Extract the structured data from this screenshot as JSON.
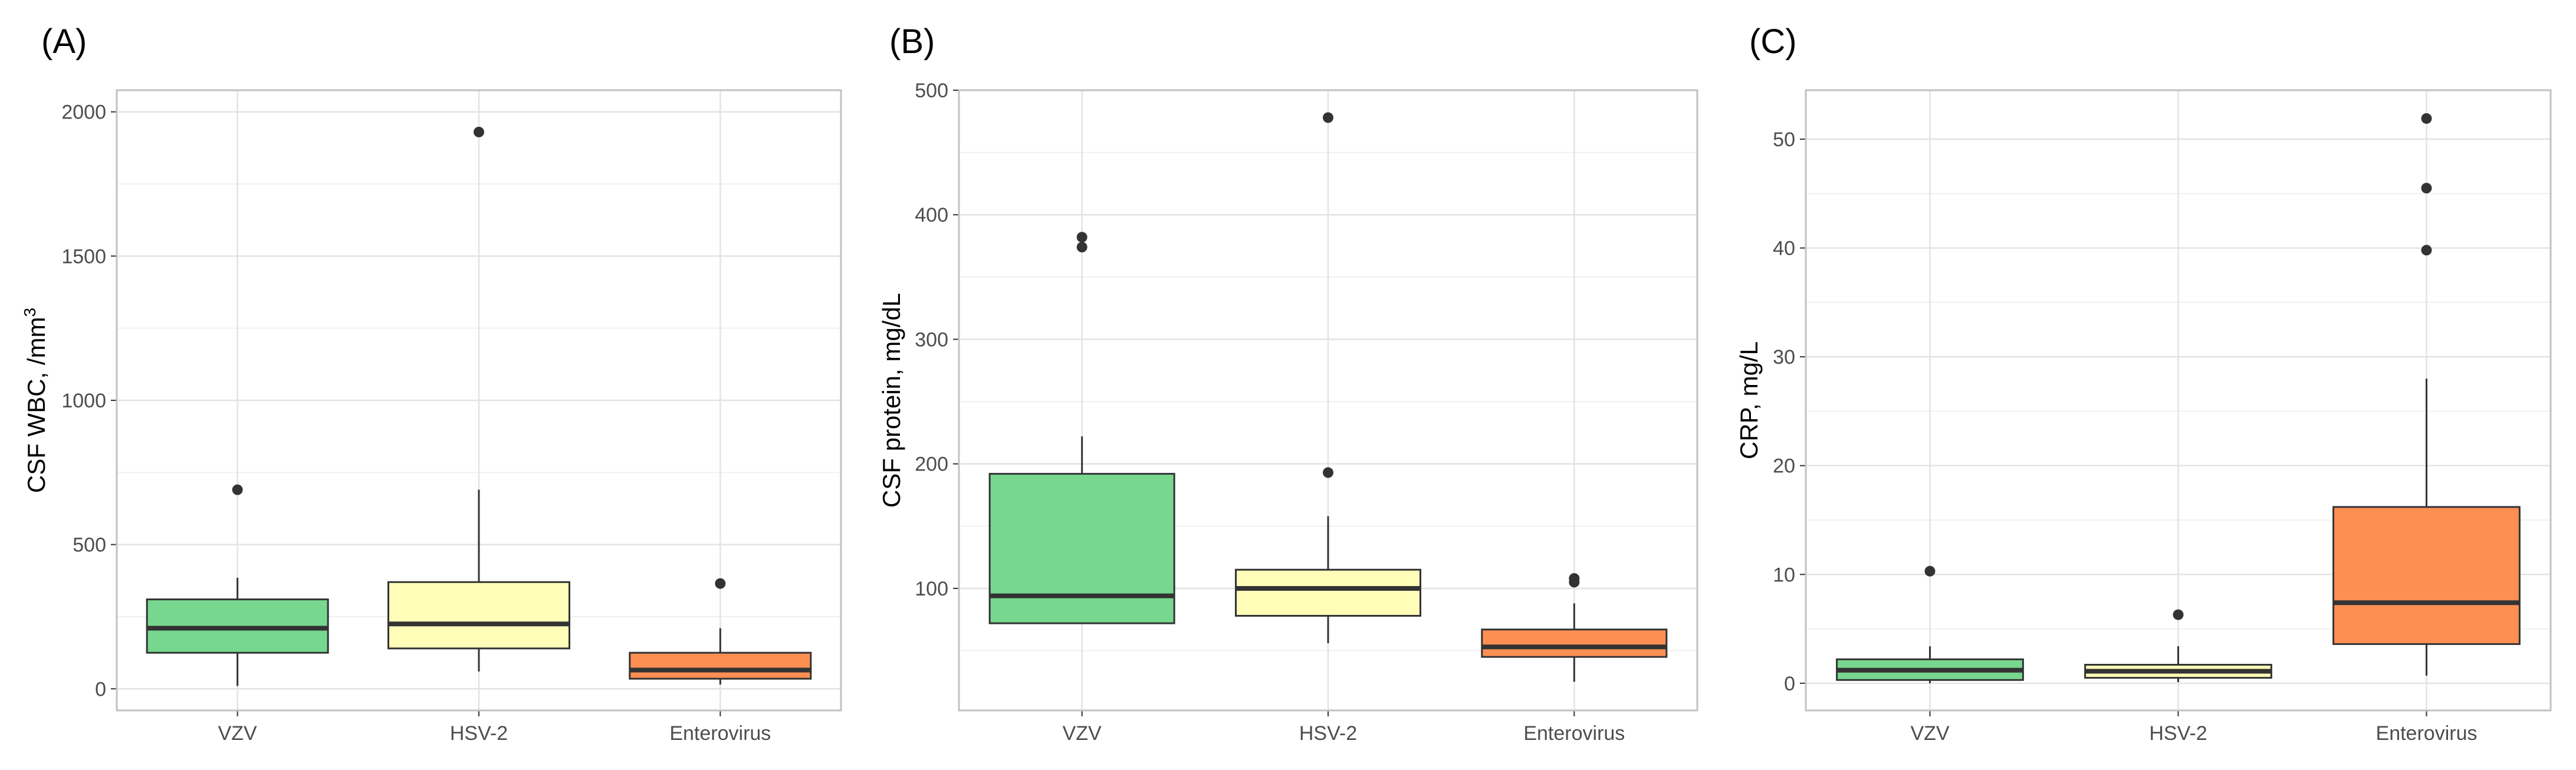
{
  "colors": {
    "VZV": "#77D78F",
    "HSV-2": "#FFFDB7",
    "Enterovirus": "#FE8F53",
    "outline": "#333333",
    "grid_major": "#e3e3e3",
    "grid_minor": "#f0f0f0",
    "panel_border": "#c2c2c2"
  },
  "chart_data": [
    {
      "type": "box",
      "panel_label": "(A)",
      "ylabel": "CSF WBC, /mm3",
      "ylabel_main": "CSF WBC, /mm",
      "ylabel_sup": "3",
      "categories": [
        "VZV",
        "HSV-2",
        "Enterovirus"
      ],
      "ylim": [
        -75,
        2075
      ],
      "yticks": [
        0,
        500,
        1000,
        1500,
        2000
      ],
      "yminor": [
        250,
        750,
        1250,
        1750
      ],
      "boxes": [
        {
          "name": "VZV",
          "whisker_low": 10,
          "q1": 125,
          "median": 210,
          "q3": 310,
          "whisker_high": 385,
          "outliers": [
            690
          ]
        },
        {
          "name": "HSV-2",
          "whisker_low": 60,
          "q1": 140,
          "median": 225,
          "q3": 370,
          "whisker_high": 690,
          "outliers": [
            1930
          ]
        },
        {
          "name": "Enterovirus",
          "whisker_low": 15,
          "q1": 35,
          "median": 65,
          "q3": 125,
          "whisker_high": 210,
          "outliers": [
            365
          ]
        }
      ]
    },
    {
      "type": "box",
      "panel_label": "(B)",
      "ylabel": "CSF protein, mg/dL",
      "categories": [
        "VZV",
        "HSV-2",
        "Enterovirus"
      ],
      "ylim": [
        2,
        500
      ],
      "yticks": [
        100,
        200,
        300,
        400,
        500
      ],
      "yminor": [
        50,
        150,
        250,
        350,
        450
      ],
      "boxes": [
        {
          "name": "VZV",
          "whisker_low": 72,
          "q1": 72,
          "median": 94,
          "q3": 192,
          "whisker_high": 222,
          "outliers": [
            374,
            382
          ]
        },
        {
          "name": "HSV-2",
          "whisker_low": 56,
          "q1": 78,
          "median": 100,
          "q3": 115,
          "whisker_high": 158,
          "outliers": [
            193,
            478
          ]
        },
        {
          "name": "Enterovirus",
          "whisker_low": 25,
          "q1": 45,
          "median": 53,
          "q3": 67,
          "whisker_high": 88,
          "outliers": [
            105,
            108
          ]
        }
      ]
    },
    {
      "type": "box",
      "panel_label": "(C)",
      "ylabel": "CRP, mg/L",
      "categories": [
        "VZV",
        "HSV-2",
        "Enterovirus"
      ],
      "ylim": [
        -2.5,
        54.5
      ],
      "yticks": [
        0,
        10,
        20,
        30,
        40,
        50
      ],
      "yminor": [
        5,
        15,
        25,
        35,
        45
      ],
      "boxes": [
        {
          "name": "VZV",
          "whisker_low": 0,
          "q1": 0.3,
          "median": 1.2,
          "q3": 2.2,
          "whisker_high": 3.4,
          "outliers": [
            10.3
          ]
        },
        {
          "name": "HSV-2",
          "whisker_low": 0.1,
          "q1": 0.5,
          "median": 1.1,
          "q3": 1.7,
          "whisker_high": 3.4,
          "outliers": [
            6.3
          ]
        },
        {
          "name": "Enterovirus",
          "whisker_low": 0.7,
          "q1": 3.6,
          "median": 7.4,
          "q3": 16.2,
          "whisker_high": 28,
          "outliers": [
            39.8,
            45.5,
            51.9
          ]
        }
      ]
    }
  ]
}
